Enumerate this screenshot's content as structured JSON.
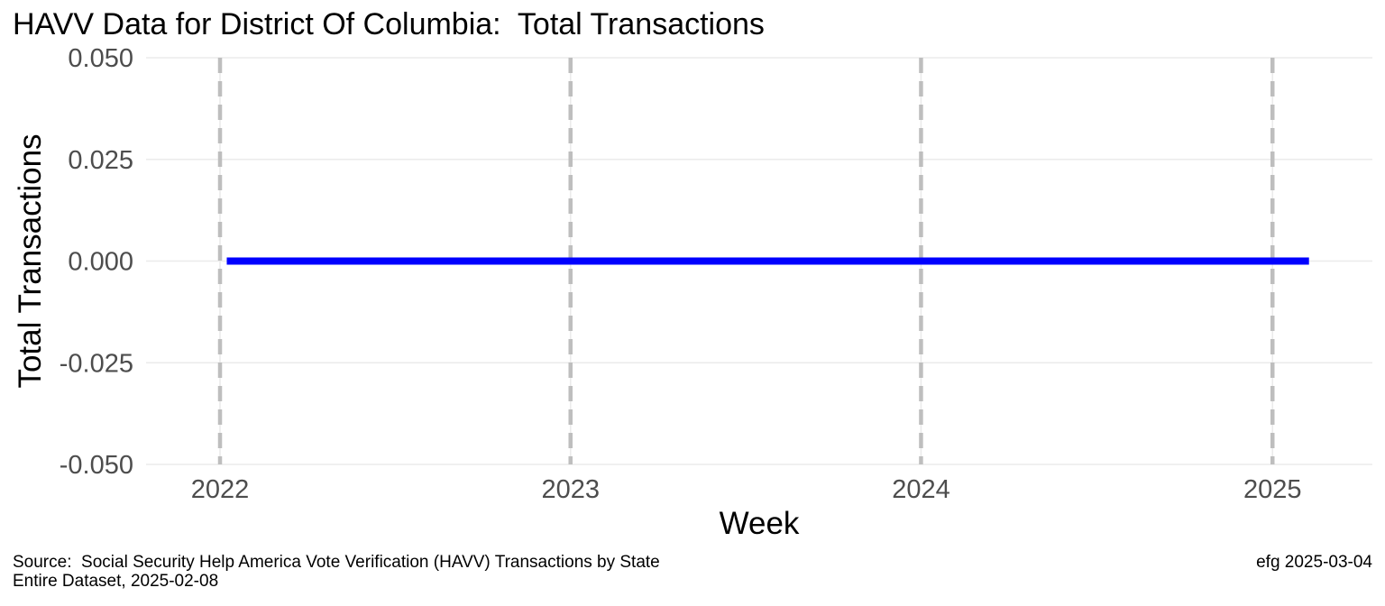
{
  "chart_data": {
    "type": "line",
    "title": "HAVV Data for District Of Columbia:  Total Transactions",
    "xlabel": "Week",
    "ylabel": "Total Transactions",
    "x_axis_type": "date",
    "xlim": [
      "2021-10-16",
      "2025-04-15"
    ],
    "ylim": [
      -0.05,
      0.05
    ],
    "x_ticks": [
      {
        "value": "2022-01-01",
        "label": "2022"
      },
      {
        "value": "2023-01-01",
        "label": "2023"
      },
      {
        "value": "2024-01-01",
        "label": "2024"
      },
      {
        "value": "2025-01-01",
        "label": "2025"
      }
    ],
    "y_ticks": [
      {
        "value": 0.05,
        "label": "0.050"
      },
      {
        "value": 0.025,
        "label": "0.025"
      },
      {
        "value": 0.0,
        "label": "0.000"
      },
      {
        "value": -0.025,
        "label": "-0.025"
      },
      {
        "value": -0.05,
        "label": "-0.050"
      }
    ],
    "grid": true,
    "year_markers": {
      "style": "dashed",
      "color": "#bebebe",
      "at": [
        "2022-01-01",
        "2023-01-01",
        "2024-01-01",
        "2025-01-01"
      ]
    },
    "series": [
      {
        "color": "#0000ff",
        "x": [
          "2022-01-08",
          "2025-02-08"
        ],
        "y": [
          0,
          0
        ]
      }
    ]
  },
  "caption": {
    "source_line": "Source:  Social Security Help America Vote Verification (HAVV) Transactions by State",
    "dataset_line": "Entire Dataset, 2025-02-08",
    "credit": "efg 2025-03-04"
  },
  "colors": {
    "gridline": "#ebebeb",
    "tick_text": "#4d4d4d",
    "series": "#0000ff",
    "year_marker": "#bebebe"
  }
}
